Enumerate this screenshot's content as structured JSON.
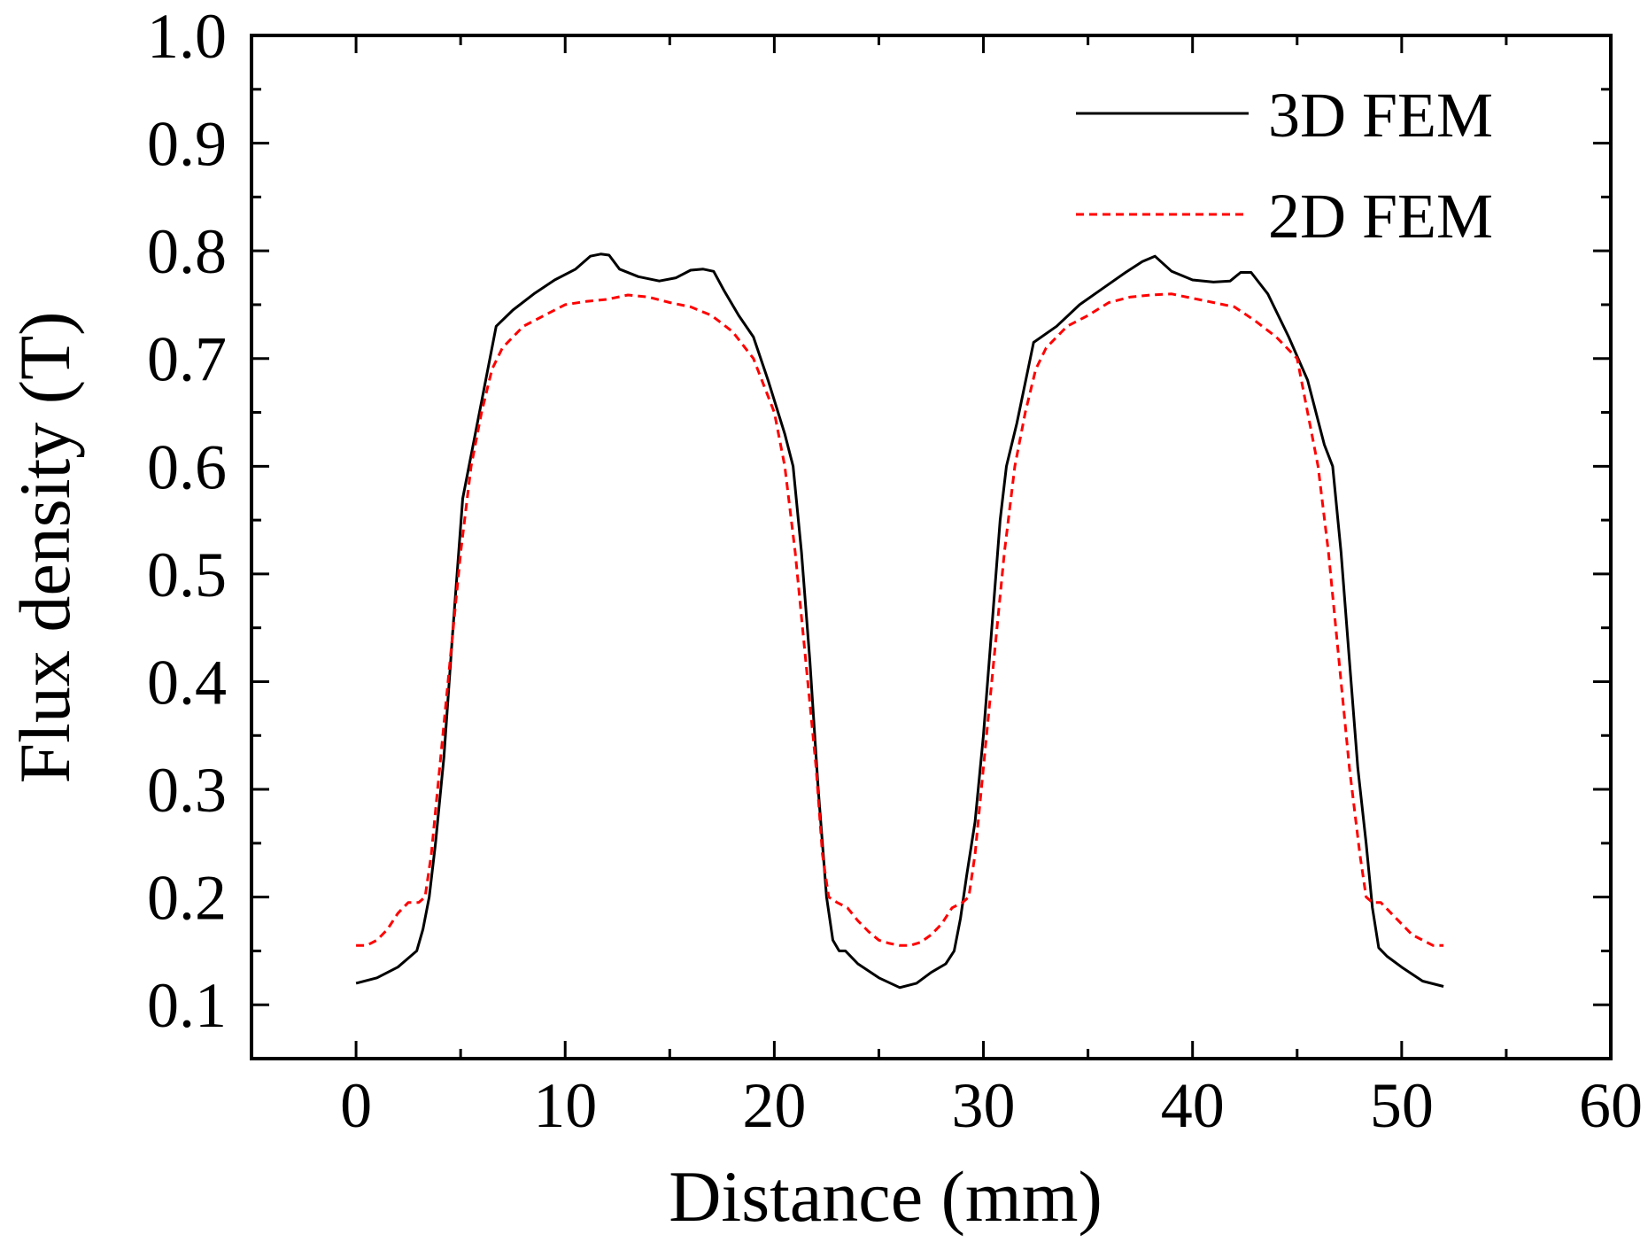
{
  "chart_data": {
    "type": "line",
    "xlabel": "Distance (mm)",
    "ylabel": "Flux density (T)",
    "xlim": [
      -5,
      60
    ],
    "ylim": [
      0.05,
      1.0
    ],
    "xticks": [
      0,
      10,
      20,
      30,
      40,
      50,
      60
    ],
    "xtick_labels": [
      "0",
      "10",
      "20",
      "30",
      "40",
      "50",
      "60"
    ],
    "yticks": [
      0.1,
      0.2,
      0.3,
      0.4,
      0.5,
      0.6,
      0.7,
      0.8,
      0.9,
      1.0
    ],
    "ytick_labels": [
      "0.1",
      "0.2",
      "0.3",
      "0.4",
      "0.5",
      "0.6",
      "0.7",
      "0.8",
      "0.9",
      "1.0"
    ],
    "legend_position": "top-right",
    "series": [
      {
        "name": "3D FEM",
        "color": "#000000",
        "style": "solid",
        "x": [
          0,
          1,
          2,
          2.6,
          2.9,
          3.2,
          3.5,
          3.8,
          4.2,
          4.6,
          5.1,
          5.4,
          6,
          6.7,
          7.5,
          8.5,
          9.5,
          10.5,
          11.2,
          11.7,
          12.1,
          12.6,
          13.5,
          14.5,
          15.3,
          16,
          16.6,
          17.1,
          17.6,
          18.3,
          19,
          19.7,
          20.5,
          20.9,
          21.3,
          21.7,
          22.1,
          22.5,
          22.8,
          23.1,
          23.4,
          24,
          25,
          26,
          26.8,
          27.5,
          28.2,
          28.6,
          28.9,
          29.2,
          29.6,
          30,
          30.4,
          30.8,
          31.1,
          31.6,
          32.4,
          33.5,
          34.6,
          35.7,
          36.8,
          37.6,
          38.2,
          39,
          40,
          41,
          41.8,
          42.3,
          42.8,
          43.6,
          44.6,
          45.5,
          46.3,
          46.7,
          47.1,
          47.5,
          47.9,
          48.3,
          48.6,
          48.9,
          49.3,
          50,
          51,
          52
        ],
        "y": [
          0.12,
          0.125,
          0.135,
          0.145,
          0.15,
          0.17,
          0.2,
          0.25,
          0.33,
          0.44,
          0.57,
          0.6,
          0.66,
          0.73,
          0.745,
          0.76,
          0.773,
          0.783,
          0.795,
          0.797,
          0.796,
          0.783,
          0.776,
          0.772,
          0.775,
          0.782,
          0.783,
          0.781,
          0.763,
          0.74,
          0.72,
          0.68,
          0.63,
          0.6,
          0.52,
          0.42,
          0.3,
          0.2,
          0.16,
          0.15,
          0.15,
          0.138,
          0.125,
          0.116,
          0.12,
          0.13,
          0.138,
          0.15,
          0.18,
          0.22,
          0.27,
          0.35,
          0.45,
          0.55,
          0.6,
          0.64,
          0.715,
          0.73,
          0.75,
          0.765,
          0.78,
          0.79,
          0.795,
          0.781,
          0.773,
          0.771,
          0.772,
          0.78,
          0.78,
          0.76,
          0.72,
          0.68,
          0.62,
          0.6,
          0.52,
          0.42,
          0.32,
          0.25,
          0.19,
          0.153,
          0.145,
          0.135,
          0.122,
          0.117
        ]
      },
      {
        "name": "2D FEM",
        "color": "#ff0000",
        "style": "dashed",
        "x": [
          0,
          0.5,
          1,
          1.5,
          2,
          2.5,
          3,
          3.3,
          3.6,
          4,
          4.5,
          5,
          5.5,
          6,
          6.5,
          7,
          8,
          9,
          10,
          11,
          12,
          13,
          14,
          15,
          16,
          17,
          18,
          19,
          20,
          20.5,
          21,
          21.5,
          22,
          22.3,
          22.6,
          23,
          23.5,
          24,
          24.5,
          25,
          25.5,
          26,
          26.5,
          27,
          27.5,
          28,
          28.5,
          29,
          29.3,
          29.6,
          30,
          30.5,
          31,
          31.5,
          32,
          32.5,
          33,
          34,
          35,
          36,
          37,
          38,
          39,
          40,
          41,
          42,
          43,
          44,
          45,
          45.5,
          46,
          46.5,
          47,
          47.5,
          48,
          48.3,
          48.6,
          49,
          49.5,
          50,
          50.5,
          51,
          51.5,
          52
        ],
        "y": [
          0.155,
          0.155,
          0.16,
          0.17,
          0.185,
          0.195,
          0.195,
          0.2,
          0.24,
          0.32,
          0.42,
          0.52,
          0.6,
          0.65,
          0.69,
          0.71,
          0.73,
          0.74,
          0.75,
          0.753,
          0.755,
          0.759,
          0.757,
          0.752,
          0.748,
          0.74,
          0.725,
          0.7,
          0.65,
          0.6,
          0.52,
          0.42,
          0.32,
          0.24,
          0.2,
          0.195,
          0.19,
          0.178,
          0.168,
          0.16,
          0.157,
          0.155,
          0.155,
          0.158,
          0.165,
          0.175,
          0.19,
          0.195,
          0.2,
          0.24,
          0.32,
          0.42,
          0.52,
          0.6,
          0.65,
          0.69,
          0.71,
          0.73,
          0.74,
          0.752,
          0.757,
          0.759,
          0.76,
          0.756,
          0.752,
          0.748,
          0.735,
          0.72,
          0.7,
          0.65,
          0.6,
          0.52,
          0.42,
          0.32,
          0.24,
          0.2,
          0.195,
          0.195,
          0.185,
          0.175,
          0.165,
          0.16,
          0.155,
          0.155
        ]
      }
    ]
  }
}
